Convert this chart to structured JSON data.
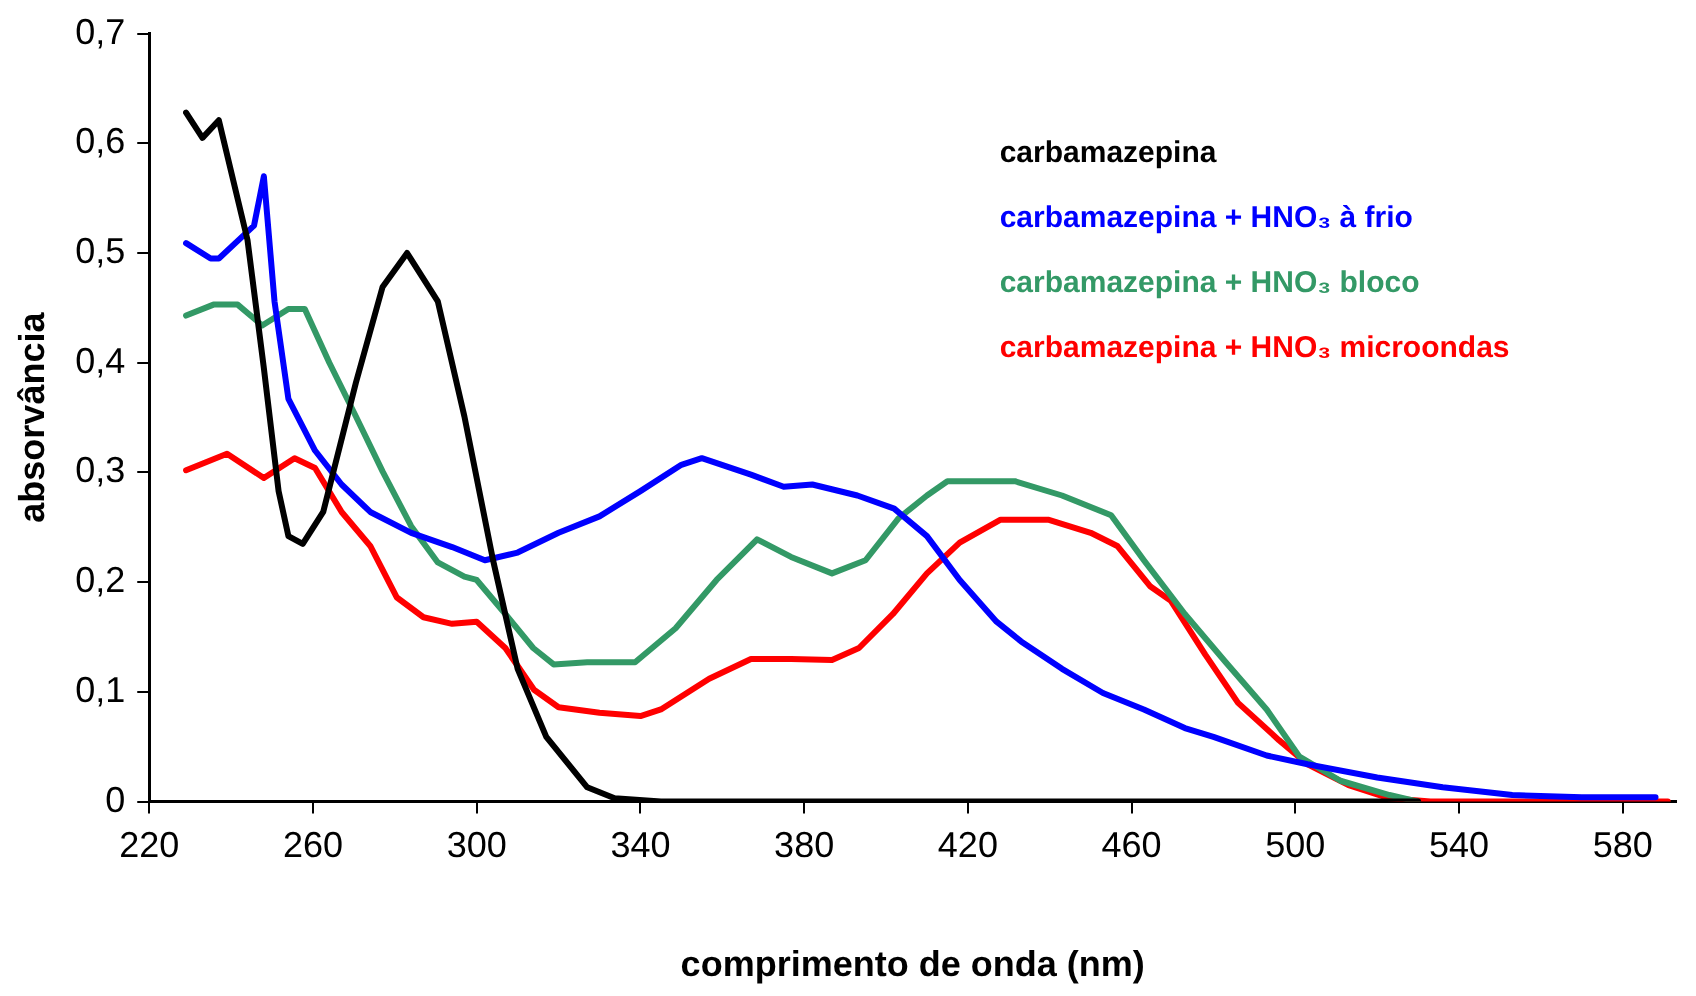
{
  "chart_data": {
    "type": "line",
    "xlabel": "comprimento de onda (nm)",
    "ylabel": "absorvância",
    "xlim": [
      220,
      593
    ],
    "xticks": [
      220,
      260,
      300,
      340,
      380,
      420,
      460,
      500,
      540,
      580
    ],
    "ylim": [
      0,
      0.7
    ],
    "yticks": [
      0,
      {
        "value": 0.1,
        "label": "0,1"
      },
      {
        "value": 0.2,
        "label": "0,2"
      },
      {
        "value": 0.3,
        "label": "0,3"
      },
      {
        "value": 0.4,
        "label": "0,4"
      },
      {
        "value": 0.5,
        "label": "0,5"
      },
      {
        "value": 0.6,
        "label": "0,6"
      },
      {
        "value": 0.7,
        "label": "0,7"
      }
    ],
    "grid": false,
    "legend": "top right",
    "marker": "none",
    "line_style": "solid",
    "series": [
      {
        "name": "carbamazepina",
        "color": "#000000",
        "x": [
          229,
          233,
          237,
          244,
          248,
          251.6,
          254,
          257.5,
          262.5,
          270.5,
          277,
          283,
          290.5,
          297,
          304,
          310,
          317,
          327,
          333.7,
          345,
          400,
          480,
          530
        ],
        "values": [
          0.628,
          0.605,
          0.621,
          0.512,
          0.395,
          0.283,
          0.242,
          0.235,
          0.264,
          0.382,
          0.469,
          0.5,
          0.456,
          0.351,
          0.22,
          0.121,
          0.059,
          0.013,
          0.003,
          0,
          0,
          0,
          0
        ]
      },
      {
        "name": "carbamazepina + HNO₃ à frio",
        "color": "#0000ff",
        "x": [
          229,
          235,
          237,
          245.6,
          248,
          250.6,
          254,
          260.5,
          267,
          274,
          284,
          294,
          302,
          310,
          320,
          330,
          340,
          350,
          355,
          367,
          375,
          382,
          393,
          402,
          410,
          418,
          427,
          433,
          443,
          453,
          463,
          473,
          480,
          493,
          503,
          520,
          536,
          553,
          570,
          588
        ],
        "values": [
          0.509,
          0.495,
          0.495,
          0.525,
          0.57,
          0.456,
          0.367,
          0.32,
          0.289,
          0.264,
          0.245,
          0.232,
          0.22,
          0.227,
          0.245,
          0.26,
          0.283,
          0.307,
          0.313,
          0.298,
          0.287,
          0.289,
          0.279,
          0.267,
          0.242,
          0.202,
          0.164,
          0.146,
          0.121,
          0.099,
          0.084,
          0.067,
          0.059,
          0.042,
          0.034,
          0.022,
          0.013,
          0.006,
          0.004,
          0.004
        ]
      },
      {
        "name": "carbamazepina + HNO₃ bloco",
        "color": "#339966",
        "x": [
          229,
          235.7,
          241.6,
          247.6,
          254,
          258,
          264,
          270.5,
          277,
          284,
          290.5,
          297,
          300,
          307,
          313.8,
          318.8,
          327,
          338.7,
          348.6,
          358.6,
          368.5,
          376.8,
          386.8,
          395,
          403,
          410,
          415,
          431.5,
          443,
          455,
          463,
          473,
          483,
          493,
          501,
          511,
          523,
          530
        ],
        "values": [
          0.443,
          0.453,
          0.453,
          0.434,
          0.449,
          0.449,
          0.4,
          0.351,
          0.301,
          0.251,
          0.218,
          0.205,
          0.202,
          0.171,
          0.14,
          0.125,
          0.127,
          0.127,
          0.158,
          0.202,
          0.239,
          0.223,
          0.208,
          0.22,
          0.258,
          0.279,
          0.292,
          0.292,
          0.279,
          0.261,
          0.22,
          0.171,
          0.127,
          0.084,
          0.041,
          0.019,
          0.006,
          0
        ]
      },
      {
        "name": "carbamazepina + HNO₃ microondas",
        "color": "#ff0000",
        "x": [
          229,
          239,
          248,
          255.5,
          260.5,
          267,
          274,
          280.5,
          287,
          294,
          300,
          307,
          314,
          320,
          330,
          340,
          345,
          356.8,
          367,
          376.8,
          386.8,
          393.4,
          401.7,
          410,
          418,
          428,
          439.6,
          450,
          456.5,
          464.6,
          469.6,
          478,
          486,
          496,
          503,
          513,
          523,
          533,
          591
        ],
        "values": [
          0.302,
          0.317,
          0.295,
          0.313,
          0.304,
          0.264,
          0.233,
          0.186,
          0.168,
          0.162,
          0.164,
          0.14,
          0.102,
          0.086,
          0.081,
          0.078,
          0.084,
          0.112,
          0.13,
          0.13,
          0.129,
          0.14,
          0.171,
          0.208,
          0.236,
          0.257,
          0.257,
          0.245,
          0.233,
          0.196,
          0.183,
          0.134,
          0.09,
          0.056,
          0.034,
          0.015,
          0.003,
          0,
          0
        ]
      }
    ]
  }
}
